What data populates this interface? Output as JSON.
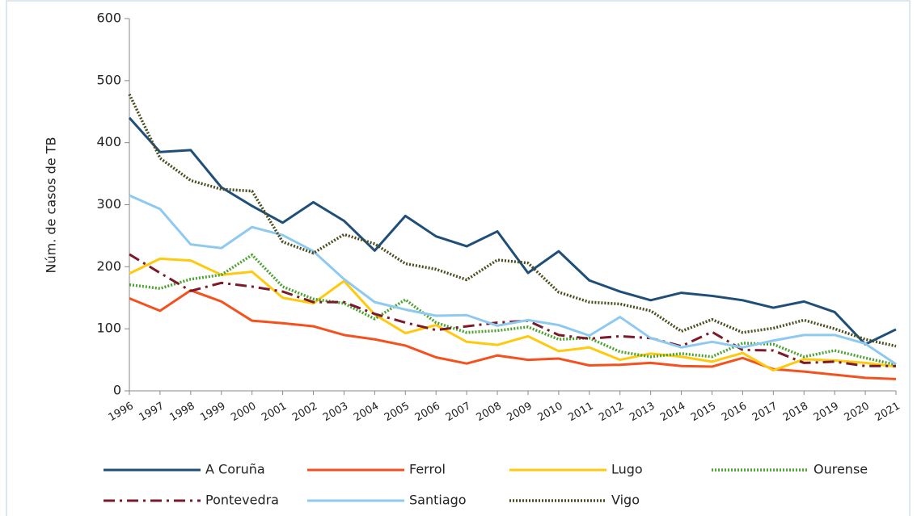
{
  "chart_data": {
    "type": "line",
    "y_label": "Núm. de casos de TB",
    "categories": [
      "1996",
      "1997",
      "1998",
      "1999",
      "2000",
      "2001",
      "2002",
      "2003",
      "2004",
      "2005",
      "2006",
      "2007",
      "2008",
      "2009",
      "2010",
      "2011",
      "2012",
      "2013",
      "2014",
      "2015",
      "2016",
      "2017",
      "2018",
      "2019",
      "2020",
      "2021"
    ],
    "ylim": [
      0,
      600
    ],
    "yticks": [
      0,
      100,
      200,
      300,
      400,
      500,
      600
    ],
    "grid": false,
    "legend": "bottom",
    "series": [
      {
        "name": "A Coruña",
        "color": "#1f4e79",
        "style": "solid",
        "values": [
          440,
          385,
          388,
          328,
          298,
          271,
          304,
          274,
          226,
          282,
          249,
          233,
          257,
          190,
          225,
          178,
          160,
          146,
          158,
          153,
          146,
          134,
          144,
          127,
          75,
          99
        ]
      },
      {
        "name": "Ferrol",
        "color": "#f4511e",
        "style": "solid",
        "values": [
          149,
          129,
          162,
          144,
          113,
          109,
          104,
          90,
          83,
          73,
          54,
          44,
          57,
          50,
          52,
          41,
          42,
          45,
          40,
          39,
          53,
          35,
          31,
          26,
          21,
          19
        ]
      },
      {
        "name": "Lugo",
        "color": "#ffc90e",
        "style": "solid",
        "values": [
          189,
          213,
          210,
          187,
          192,
          150,
          141,
          177,
          123,
          93,
          106,
          79,
          74,
          88,
          64,
          70,
          50,
          60,
          55,
          47,
          61,
          33,
          51,
          49,
          45,
          39
        ]
      },
      {
        "name": "Ourense",
        "color": "#4ca22f",
        "style": "dotted",
        "values": [
          171,
          165,
          180,
          187,
          219,
          168,
          148,
          141,
          116,
          147,
          110,
          94,
          97,
          103,
          83,
          85,
          63,
          55,
          60,
          55,
          77,
          75,
          55,
          65,
          53,
          42
        ]
      },
      {
        "name": "Pontevedra",
        "color": "#7b1a2b",
        "style": "dashdot",
        "values": [
          220,
          190,
          161,
          174,
          168,
          160,
          143,
          143,
          124,
          110,
          98,
          104,
          110,
          113,
          90,
          84,
          88,
          85,
          72,
          95,
          66,
          65,
          45,
          47,
          40,
          40
        ]
      },
      {
        "name": "Santiago",
        "color": "#8ec9f0",
        "style": "solid",
        "values": [
          315,
          293,
          236,
          230,
          264,
          251,
          225,
          180,
          143,
          131,
          121,
          122,
          105,
          114,
          106,
          89,
          119,
          85,
          70,
          79,
          70,
          81,
          90,
          90,
          76,
          43
        ]
      },
      {
        "name": "Vigo",
        "color": "#4d4d1f",
        "style": "dotted",
        "values": [
          478,
          375,
          339,
          325,
          322,
          240,
          222,
          252,
          237,
          205,
          196,
          179,
          211,
          206,
          159,
          143,
          140,
          129,
          96,
          115,
          94,
          101,
          114,
          100,
          83,
          72
        ]
      }
    ]
  }
}
